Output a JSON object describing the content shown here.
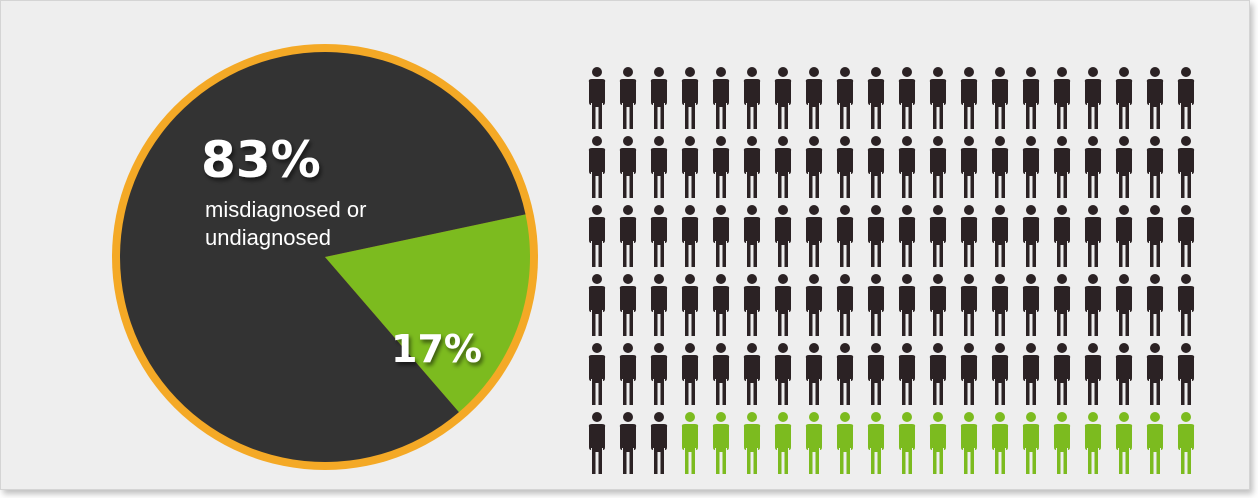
{
  "chart_data": [
    {
      "type": "pie",
      "slices": [
        {
          "label": "misdiagnosed or undiagnosed",
          "value": 83,
          "value_label": "83%",
          "color": "#333333"
        },
        {
          "label": "",
          "value": 17,
          "value_label": "17%",
          "color": "#7cbb1f"
        }
      ],
      "ring_color": "#f4a926",
      "label_lines": [
        "misdiagnosed or",
        "undiagnosed"
      ]
    },
    {
      "type": "pictograph",
      "icon": "person-icon",
      "rows": 6,
      "columns": 20,
      "total": 120,
      "highlighted": 17,
      "highlight_color": "#7cbb1f",
      "base_color": "#2b2224"
    }
  ]
}
